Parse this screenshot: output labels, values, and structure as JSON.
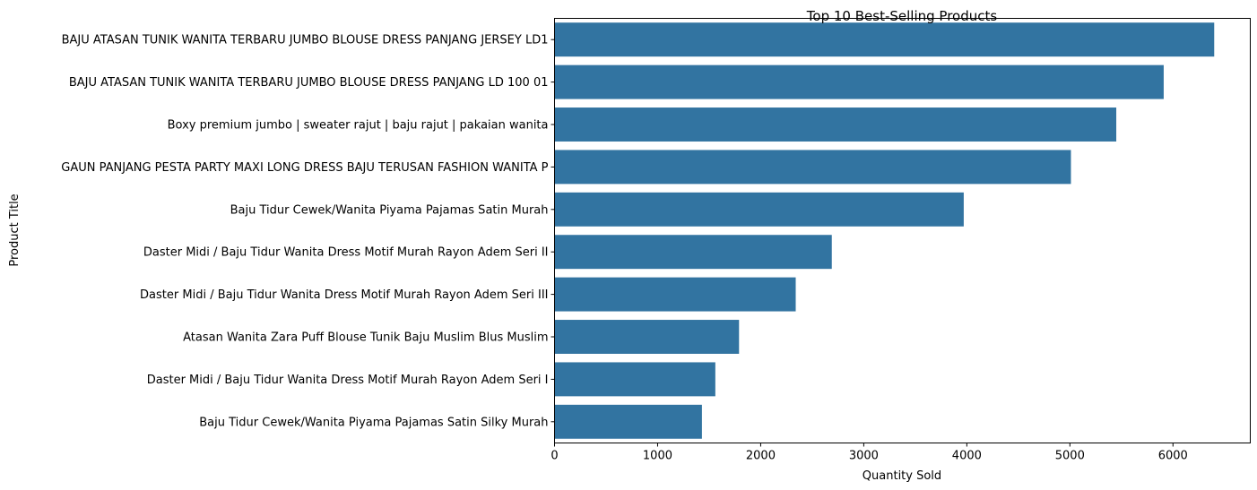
{
  "chart_data": {
    "type": "bar",
    "orientation": "horizontal",
    "title": "Top 10 Best-Selling Products",
    "xlabel": "Quantity Sold",
    "ylabel": "Product Title",
    "xlim": [
      0,
      6750
    ],
    "xticks": [
      0,
      1000,
      2000,
      3000,
      4000,
      5000,
      6000
    ],
    "grid": false,
    "bar_color": "#3274a1",
    "categories": [
      "BAJU ATASAN TUNIK WANITA TERBARU JUMBO BLOUSE DRESS PANJANG JERSEY LD1",
      "BAJU ATASAN TUNIK WANITA TERBARU JUMBO BLOUSE DRESS PANJANG LD 100 01",
      "Boxy premium jumbo | sweater rajut | baju rajut | pakaian wanita",
      "GAUN PANJANG PESTA PARTY MAXI LONG DRESS BAJU TERUSAN FASHION WANITA P",
      "Baju Tidur Cewek/Wanita Piyama Pajamas Satin Murah",
      "Daster Midi / Baju Tidur Wanita Dress Motif Murah Rayon Adem Seri II",
      "Daster Midi / Baju Tidur Wanita Dress Motif Murah Rayon Adem Seri III",
      "Atasan Wanita Zara Puff Blouse Tunik Baju Muslim Blus Muslim",
      "Daster Midi / Baju Tidur Wanita Dress Motif Murah Rayon Adem Seri I",
      "Baju Tidur Cewek/Wanita Piyama Pajamas Satin Silky Murah"
    ],
    "values": [
      6400,
      5910,
      5450,
      5010,
      3970,
      2690,
      2340,
      1790,
      1560,
      1430
    ]
  }
}
